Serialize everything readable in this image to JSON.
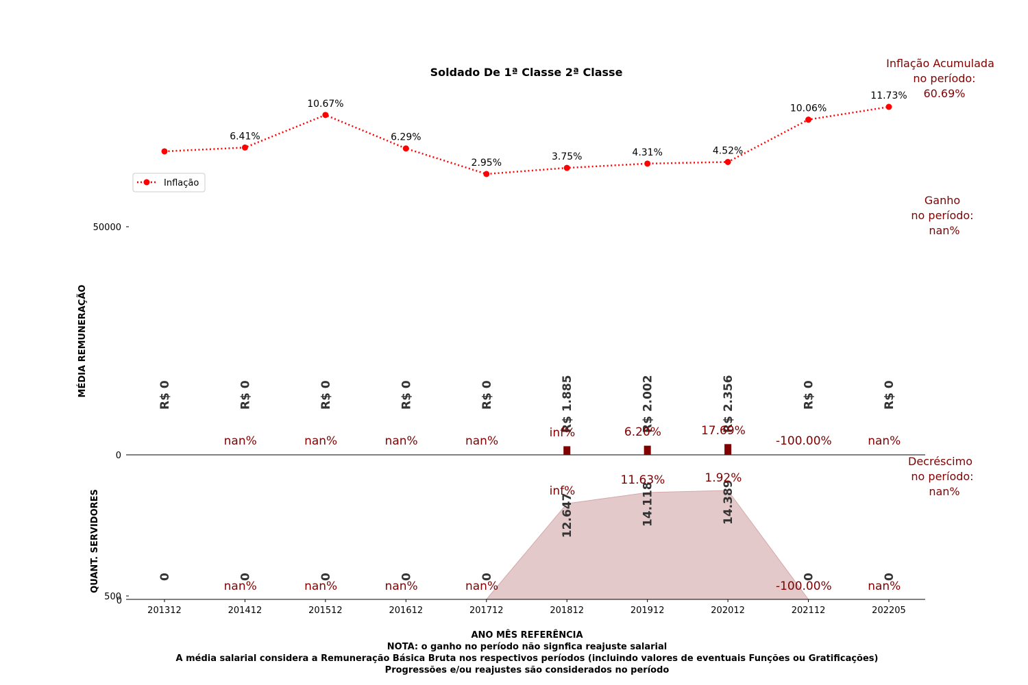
{
  "chart_data": {
    "type": "line+bar+area",
    "title": "Soldado De 1ª Classe  2ª Classe",
    "categories": [
      "201312",
      "201412",
      "201512",
      "201612",
      "201712",
      "201812",
      "201912",
      "202012",
      "202112",
      "202205"
    ],
    "inflation": {
      "name": "Inflação",
      "color": "#ff0000",
      "values": [
        5.91,
        6.41,
        10.67,
        6.29,
        2.95,
        3.75,
        4.31,
        4.52,
        10.06,
        11.73
      ],
      "labels": [
        "",
        "6.41%",
        "10.67%",
        "6.29%",
        "2.95%",
        "3.75%",
        "4.31%",
        "4.52%",
        "10.06%",
        "11.73%"
      ]
    },
    "remuneration": {
      "ylabel": "MÉDIA REMUNERAÇÃO",
      "yticks": [
        "0",
        "50000"
      ],
      "ylim": [
        0,
        50000
      ],
      "values": [
        0,
        0,
        0,
        0,
        0,
        1885,
        2002,
        2356,
        0,
        0
      ],
      "labels": [
        "R$ 0",
        "R$ 0",
        "R$ 0",
        "R$ 0",
        "R$ 0",
        "R$ 1.885",
        "R$ 2.002",
        "R$ 2.356",
        "R$ 0",
        "R$ 0"
      ],
      "pct_changes": [
        "nan%",
        "nan%",
        "nan%",
        "nan%",
        "inf%",
        "6.20%",
        "17.69%",
        "-100.00%",
        "nan%"
      ],
      "bar_color": "#800000"
    },
    "servers": {
      "ylabel": "QUANT. SERVIDORES",
      "yticks": [
        "0",
        "500"
      ],
      "values": [
        0,
        0,
        0,
        0,
        0,
        12647,
        14118,
        14389,
        0,
        0
      ],
      "labels": [
        "0",
        "0",
        "0",
        "0",
        "0",
        "12.647",
        "14.118",
        "14.389",
        "0",
        "0"
      ],
      "pct_changes": [
        "nan%",
        "nan%",
        "nan%",
        "nan%",
        "inf%",
        "11.63%",
        "1.92%",
        "-100.00%",
        "nan%"
      ],
      "fill_color": "#e3c9ca"
    },
    "xlabel": "ANO MÊS REFERÊNCIA",
    "side_notes": {
      "inflation": [
        "Inflação Acumulada",
        "no período:",
        "60.69%"
      ],
      "gain": [
        "Ganho",
        "no período:",
        "nan%"
      ],
      "decrease": [
        "Decréscimo",
        "no período:",
        "nan%"
      ]
    },
    "notes": [
      "NOTA: o ganho no período não signfica reajuste salarial",
      "A média salarial considera a Remuneração Básica Bruta nos respectivos períodos (incluindo valores de eventuais Funções ou Gratificações)",
      "Progressões e/ou reajustes são considerados no período"
    ]
  }
}
